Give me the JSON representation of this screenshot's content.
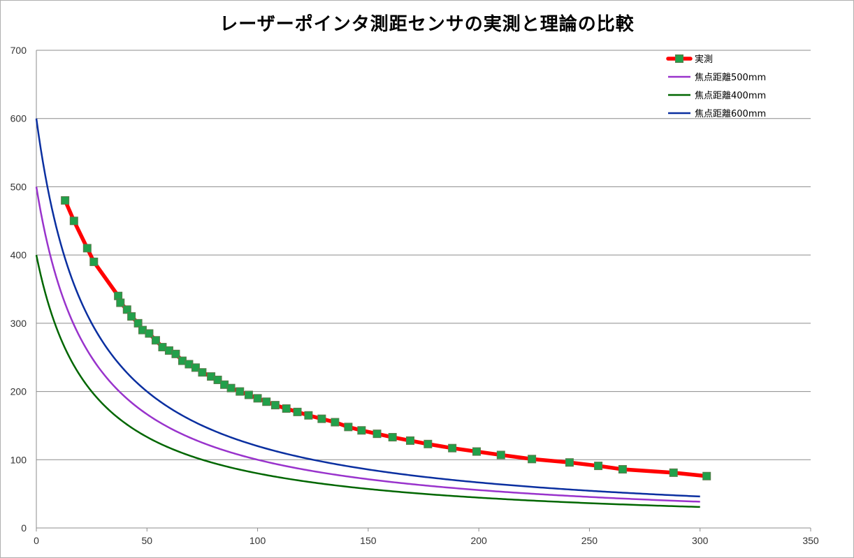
{
  "chart_data": {
    "type": "line",
    "title": "レーザーポインタ測距センサの実測と理論の比較",
    "xlabel": "",
    "ylabel": "",
    "xlim": [
      0,
      350
    ],
    "ylim": [
      0,
      700
    ],
    "xticks": [
      0,
      50,
      100,
      150,
      200,
      250,
      300,
      350
    ],
    "yticks": [
      0,
      100,
      200,
      300,
      400,
      500,
      600,
      700
    ],
    "grid": "horizontal",
    "legend_position": "top-right",
    "series": [
      {
        "name": "実測",
        "color": "#ff0000",
        "marker_color": "#22a04a",
        "style": "line-markers",
        "points": [
          [
            13,
            480
          ],
          [
            17,
            450
          ],
          [
            23,
            410
          ],
          [
            26,
            390
          ],
          [
            37,
            340
          ],
          [
            38,
            330
          ],
          [
            41,
            320
          ],
          [
            43,
            310
          ],
          [
            46,
            300
          ],
          [
            48,
            290
          ],
          [
            51,
            285
          ],
          [
            54,
            275
          ],
          [
            57,
            265
          ],
          [
            60,
            260
          ],
          [
            63,
            255
          ],
          [
            66,
            245
          ],
          [
            69,
            240
          ],
          [
            72,
            235
          ],
          [
            75,
            228
          ],
          [
            79,
            222
          ],
          [
            82,
            217
          ],
          [
            85,
            210
          ],
          [
            88,
            205
          ],
          [
            92,
            200
          ],
          [
            96,
            195
          ],
          [
            100,
            190
          ],
          [
            104,
            185
          ],
          [
            108,
            180
          ],
          [
            113,
            175
          ],
          [
            118,
            170
          ],
          [
            123,
            165
          ],
          [
            129,
            160
          ],
          [
            135,
            155
          ],
          [
            141,
            148
          ],
          [
            147,
            143
          ],
          [
            154,
            138
          ],
          [
            161,
            133
          ],
          [
            169,
            128
          ],
          [
            177,
            123
          ],
          [
            188,
            117
          ],
          [
            199,
            112
          ],
          [
            210,
            107
          ],
          [
            224,
            101
          ],
          [
            241,
            96
          ],
          [
            254,
            91
          ],
          [
            265,
            86
          ],
          [
            288,
            81
          ],
          [
            303,
            76
          ]
        ]
      },
      {
        "name": "焦点距離500mm",
        "color": "#9933cc",
        "style": "line",
        "focal": 500
      },
      {
        "name": "焦点距離400mm",
        "color": "#006600",
        "style": "line",
        "focal": 400
      },
      {
        "name": "焦点距離600mm",
        "color": "#0a2fa0",
        "style": "line",
        "focal": 600
      }
    ]
  }
}
